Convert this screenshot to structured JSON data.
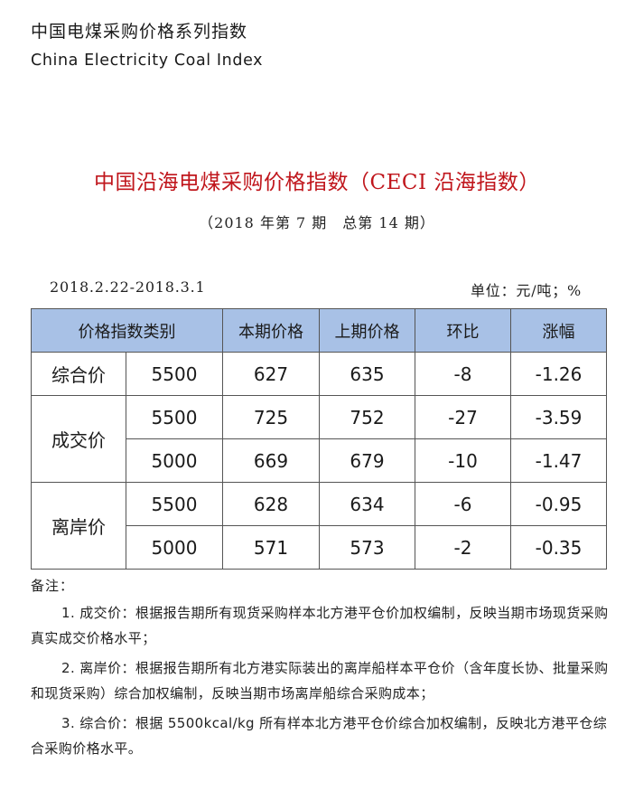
{
  "header": {
    "title_cn": "中国电煤采购价格系列指数",
    "title_en": "China Electricity Coal Index"
  },
  "report": {
    "title": "中国沿海电煤采购价格指数（CECI 沿海指数）",
    "issue": "（2018 年第 7 期　总第 14 期）",
    "date_range": "2018.2.22-2018.3.1",
    "unit": "单位：元/吨；%"
  },
  "table": {
    "headers": [
      "价格指数类别",
      "本期价格",
      "上期价格",
      "环比",
      "涨幅"
    ],
    "groups": [
      {
        "category": "综合价",
        "rows": [
          {
            "spec": "5500",
            "current": "627",
            "previous": "635",
            "change": "-8",
            "pct": "-1.26"
          }
        ]
      },
      {
        "category": "成交价",
        "rows": [
          {
            "spec": "5500",
            "current": "725",
            "previous": "752",
            "change": "-27",
            "pct": "-3.59"
          },
          {
            "spec": "5000",
            "current": "669",
            "previous": "679",
            "change": "-10",
            "pct": "-1.47"
          }
        ]
      },
      {
        "category": "离岸价",
        "rows": [
          {
            "spec": "5500",
            "current": "628",
            "previous": "634",
            "change": "-6",
            "pct": "-0.95"
          },
          {
            "spec": "5000",
            "current": "571",
            "previous": "573",
            "change": "-2",
            "pct": "-0.35"
          }
        ]
      }
    ]
  },
  "notes": {
    "label": "备注：",
    "items": [
      "1. 成交价：根据报告期所有现货采购样本北方港平仓价加权编制，反映当期市场现货采购真实成交价格水平；",
      "2. 离岸价：根据报告期所有北方港实际装出的离岸船样本平仓价（含年度长协、批量采购和现货采购）综合加权编制，反映当期市场离岸船综合采购成本；",
      "3. 综合价：根据 5500kcal/kg 所有样本北方港平仓价综合加权编制，反映北方港平仓综合采购价格水平。"
    ]
  },
  "colors": {
    "title_red": "#c0161c",
    "header_fill": "#a8c1e6",
    "negative_green": "#0a9a4a"
  }
}
